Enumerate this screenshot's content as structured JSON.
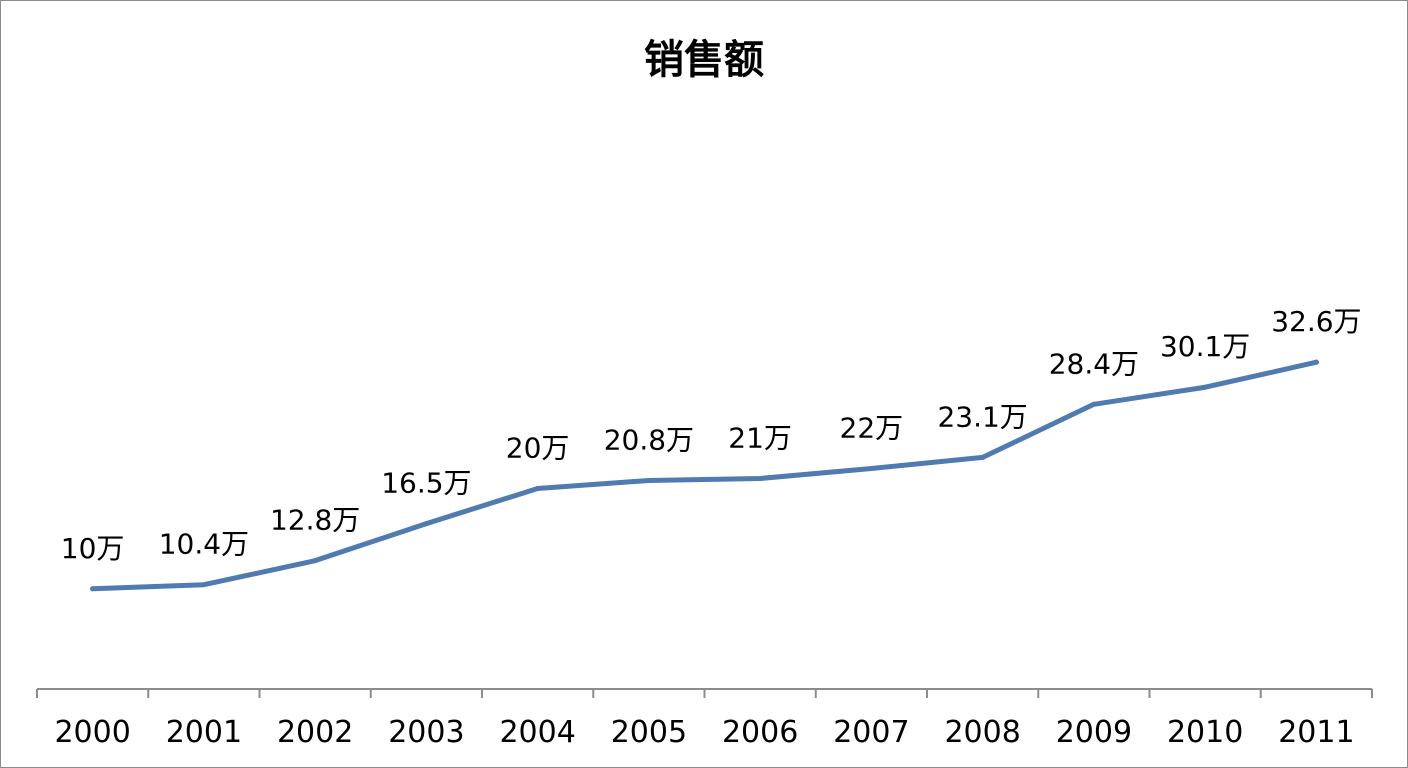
{
  "chart_data": {
    "type": "line",
    "title": "销售额",
    "xlabel": "",
    "ylabel": "",
    "categories": [
      "2000",
      "2001",
      "2002",
      "2003",
      "2004",
      "2005",
      "2006",
      "2007",
      "2008",
      "2009",
      "2010",
      "2011"
    ],
    "values": [
      10,
      10.4,
      12.8,
      16.5,
      20,
      20.8,
      21,
      22,
      23.1,
      28.4,
      30.1,
      32.6
    ],
    "data_labels": [
      "10万",
      "10.4万",
      "12.8万",
      "16.5万",
      "20万",
      "20.8万",
      "21万",
      "22万",
      "23.1万",
      "28.4万",
      "30.1万",
      "32.6万"
    ],
    "ylim": [
      0,
      40
    ],
    "grid": false,
    "legend": "none",
    "y_axis_visible": false,
    "line_color": "#4f7bb0"
  }
}
